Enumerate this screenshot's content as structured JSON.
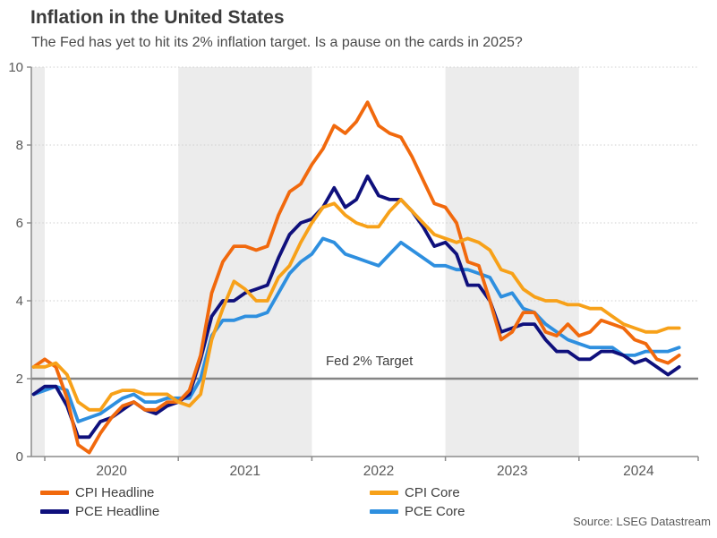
{
  "header": {
    "title": "Inflation in the United States",
    "subtitle": "The Fed has yet to hit its 2% inflation target. Is a pause on the cards in 2025?"
  },
  "chart_data": {
    "type": "line",
    "title": "Inflation in the United States",
    "unit": "percent, year-over-year",
    "frequency": "monthly",
    "x_start": "2019-12",
    "x_end": "2024-10",
    "ylim": [
      0,
      10
    ],
    "y_ticks": [
      0,
      2,
      4,
      6,
      8,
      10
    ],
    "x_tick_years": [
      "2020",
      "2021",
      "2022",
      "2023",
      "2024"
    ],
    "grid": "dotted horizontal gridlines; alternating vertical year shading",
    "legend_position": "bottom",
    "target_line": {
      "label": "Fed 2% Target",
      "value": 2,
      "color": "#858585"
    },
    "band_color": "#ececec",
    "series": [
      {
        "name": "CPI Headline",
        "color": "#f1690d",
        "values": [
          2.3,
          2.5,
          2.3,
          1.5,
          0.3,
          0.1,
          0.6,
          1.0,
          1.3,
          1.4,
          1.2,
          1.2,
          1.4,
          1.4,
          1.7,
          2.6,
          4.2,
          5.0,
          5.4,
          5.4,
          5.3,
          5.4,
          6.2,
          6.8,
          7.0,
          7.5,
          7.9,
          8.5,
          8.3,
          8.6,
          9.1,
          8.5,
          8.3,
          8.2,
          7.7,
          7.1,
          6.5,
          6.4,
          6.0,
          5.0,
          4.9,
          4.0,
          3.0,
          3.2,
          3.7,
          3.7,
          3.2,
          3.1,
          3.4,
          3.1,
          3.2,
          3.5,
          3.4,
          3.3,
          3.0,
          2.9,
          2.5,
          2.4,
          2.6
        ]
      },
      {
        "name": "CPI Core",
        "color": "#f7a119",
        "values": [
          2.3,
          2.3,
          2.4,
          2.1,
          1.4,
          1.2,
          1.2,
          1.6,
          1.7,
          1.7,
          1.6,
          1.6,
          1.6,
          1.4,
          1.3,
          1.6,
          3.0,
          3.8,
          4.5,
          4.3,
          4.0,
          4.0,
          4.6,
          4.9,
          5.5,
          6.0,
          6.4,
          6.5,
          6.2,
          6.0,
          5.9,
          5.9,
          6.3,
          6.6,
          6.3,
          6.0,
          5.7,
          5.6,
          5.5,
          5.6,
          5.5,
          5.3,
          4.8,
          4.7,
          4.3,
          4.1,
          4.0,
          4.0,
          3.9,
          3.9,
          3.8,
          3.8,
          3.6,
          3.4,
          3.3,
          3.2,
          3.2,
          3.3,
          3.3
        ]
      },
      {
        "name": "PCE Headline",
        "color": "#0f107c",
        "values": [
          1.6,
          1.8,
          1.8,
          1.3,
          0.5,
          0.5,
          0.9,
          1.0,
          1.2,
          1.4,
          1.2,
          1.1,
          1.3,
          1.4,
          1.6,
          2.5,
          3.6,
          4.0,
          4.0,
          4.2,
          4.3,
          4.4,
          5.1,
          5.7,
          6.0,
          6.1,
          6.4,
          6.9,
          6.4,
          6.6,
          7.2,
          6.7,
          6.6,
          6.6,
          6.3,
          5.9,
          5.4,
          5.5,
          5.2,
          4.4,
          4.4,
          4.0,
          3.2,
          3.3,
          3.4,
          3.4,
          3.0,
          2.7,
          2.7,
          2.5,
          2.5,
          2.7,
          2.7,
          2.6,
          2.4,
          2.5,
          2.3,
          2.1,
          2.3
        ]
      },
      {
        "name": "PCE Core",
        "color": "#2e8fdf",
        "values": [
          1.6,
          1.7,
          1.8,
          1.7,
          0.9,
          1.0,
          1.1,
          1.3,
          1.5,
          1.6,
          1.4,
          1.4,
          1.5,
          1.5,
          1.5,
          2.0,
          3.1,
          3.5,
          3.5,
          3.6,
          3.6,
          3.7,
          4.2,
          4.7,
          5.0,
          5.2,
          5.6,
          5.5,
          5.2,
          5.1,
          5.0,
          4.9,
          5.2,
          5.5,
          5.3,
          5.1,
          4.9,
          4.9,
          4.8,
          4.8,
          4.7,
          4.6,
          4.1,
          4.2,
          3.8,
          3.7,
          3.4,
          3.2,
          3.0,
          2.9,
          2.8,
          2.8,
          2.8,
          2.6,
          2.6,
          2.7,
          2.7,
          2.7,
          2.8
        ]
      }
    ]
  },
  "legend": {
    "items": [
      {
        "label": "CPI Headline",
        "series": 0
      },
      {
        "label": "CPI Core",
        "series": 1
      },
      {
        "label": "PCE Headline",
        "series": 2
      },
      {
        "label": "PCE Core",
        "series": 3
      }
    ]
  },
  "source": "Source: LSEG Datastream"
}
